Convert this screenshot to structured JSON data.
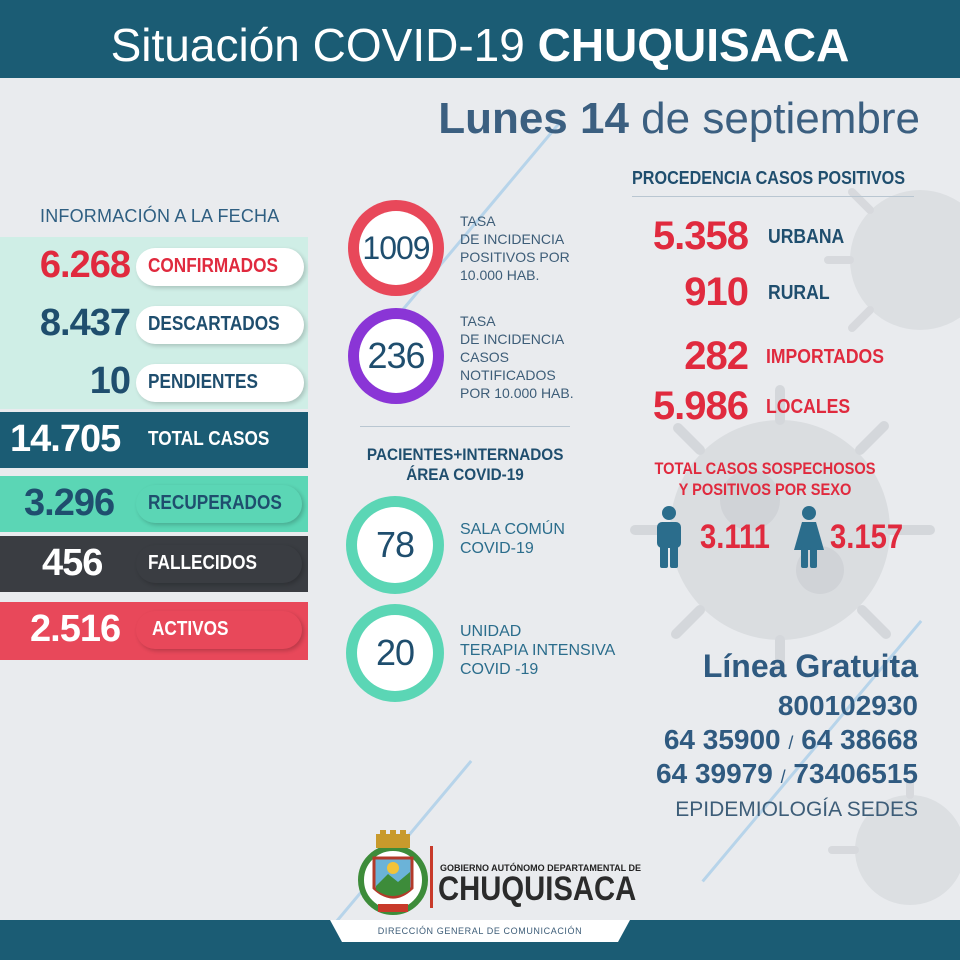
{
  "header": {
    "title_light": "Situación COVID-19",
    "title_bold": "CHUQUISACA",
    "date_bold": "Lunes 14",
    "date_light": "de septiembre"
  },
  "info": {
    "heading": "INFORMACIÓN A LA FECHA",
    "confirmados": {
      "value": "6.268",
      "label": "CONFIRMADOS"
    },
    "descartados": {
      "value": "8.437",
      "label": "DESCARTADOS"
    },
    "pendientes": {
      "value": "10",
      "label": "PENDIENTES"
    },
    "total": {
      "value": "14.705",
      "label": "TOTAL CASOS"
    },
    "recuperados": {
      "value": "3.296",
      "label": "RECUPERADOS"
    },
    "fallecidos": {
      "value": "456",
      "label": "FALLECIDOS"
    },
    "activos": {
      "value": "2.516",
      "label": "ACTIVOS"
    }
  },
  "tasas": {
    "positivos": {
      "value": "1009",
      "lines": [
        "TASA",
        "DE INCIDENCIA",
        "POSITIVOS POR",
        "10.000 HAB."
      ]
    },
    "notificados": {
      "value": "236",
      "lines": [
        "TASA",
        "DE INCIDENCIA",
        "CASOS",
        "NOTIFICADOS",
        "POR 10.000 HAB."
      ]
    }
  },
  "pacientes": {
    "heading_1": "PACIENTES+INTERNADOS",
    "heading_2": "ÁREA COVID-19",
    "sala": {
      "value": "78",
      "line_1": "SALA COMÚN",
      "line_2": "COVID-19"
    },
    "uti": {
      "value": "20",
      "line_1": "UNIDAD",
      "line_2": "TERAPIA INTENSIVA",
      "line_3": "COVID -19"
    }
  },
  "procedencia": {
    "heading": "PROCEDENCIA CASOS POSITIVOS",
    "urbana": {
      "value": "5.358",
      "label": "URBANA"
    },
    "rural": {
      "value": "910",
      "label": "RURAL"
    },
    "importados": {
      "value": "282",
      "label": "IMPORTADOS"
    },
    "locales": {
      "value": "5.986",
      "label": "LOCALES"
    }
  },
  "sexo": {
    "heading_1": "TOTAL CASOS SOSPECHOSOS",
    "heading_2": "Y POSITIVOS POR SEXO",
    "hombres": "3.111",
    "mujeres": "3.157"
  },
  "contacto": {
    "title": "Línea Gratuita",
    "phone_1": "800102930",
    "phone_2a": "64 35900",
    "phone_2b": "64 38668",
    "phone_3a": "64 39979",
    "phone_3b": "73406515",
    "slash": "/",
    "org": "EPIDEMIOLOGÍA SEDES"
  },
  "footer": {
    "gobierno": "GOBIERNO AUTÓNOMO DEPARTAMENTAL DE",
    "chuquisaca": "CHUQUISACA",
    "direccion": "DIRECCIÓN GENERAL DE COMUNICACIÓN"
  },
  "colors": {
    "navy": "#1f4e6e",
    "red": "#e02a3e",
    "teal": "#5bd6b5",
    "purple": "#8a35d6",
    "dark": "#3a3d42",
    "mint": "#cfeee6"
  }
}
